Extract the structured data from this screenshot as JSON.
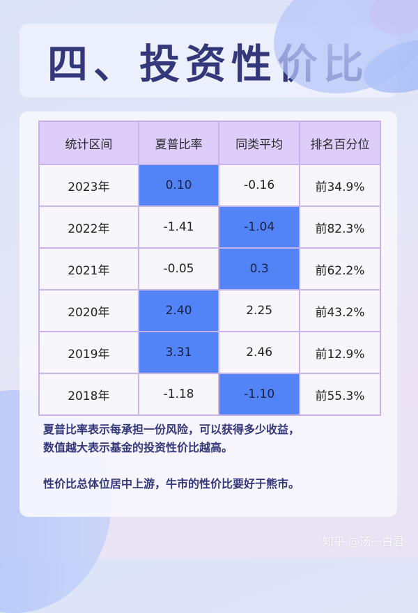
{
  "title": "四、投资性价比",
  "table": {
    "headers": [
      "统计区间",
      "夏普比率",
      "同类平均",
      "排名百分位"
    ],
    "rows": [
      {
        "period": "2023年",
        "sharpe": "0.10",
        "peer_avg": "-0.16",
        "rank": "前34.9%",
        "highlight": "sharpe"
      },
      {
        "period": "2022年",
        "sharpe": "-1.41",
        "peer_avg": "-1.04",
        "rank": "前82.3%",
        "highlight": "peer_avg"
      },
      {
        "period": "2021年",
        "sharpe": "-0.05",
        "peer_avg": "0.3",
        "rank": "前62.2%",
        "highlight": "peer_avg"
      },
      {
        "period": "2020年",
        "sharpe": "2.40",
        "peer_avg": "2.25",
        "rank": "前43.2%",
        "highlight": "sharpe"
      },
      {
        "period": "2019年",
        "sharpe": "3.31",
        "peer_avg": "2.46",
        "rank": "前12.9%",
        "highlight": "sharpe"
      },
      {
        "period": "2018年",
        "sharpe": "-1.18",
        "peer_avg": "-1.10",
        "rank": "前55.3%",
        "highlight": "peer_avg"
      }
    ]
  },
  "notes": {
    "line1": "夏普比率表示每承担一份风险，可以获得多少收益，",
    "line2": "数值越大表示基金的投资性价比越高。",
    "line3": "性价比总体位居中上游，牛市的性价比要好于熊市。"
  },
  "watermark": "知乎 @汤一白君",
  "colors": {
    "title": "#34387a",
    "header_bg": "#dccdfa",
    "highlight": "#5283f7",
    "border": "#c7b3ea"
  }
}
